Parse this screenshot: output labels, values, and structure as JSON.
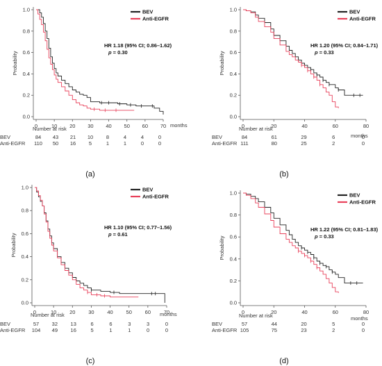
{
  "chart_data": [
    {
      "id": "a",
      "type": "line",
      "panel_label": "(a)",
      "ylabel": "Probability",
      "xunit": "months",
      "xlim": [
        0,
        70
      ],
      "ylim": [
        0,
        1
      ],
      "x_ticks": [
        "0",
        "10",
        "20",
        "30",
        "40",
        "50",
        "60",
        "70"
      ],
      "y_ticks": [
        "0.0",
        "0.2",
        "0.4",
        "0.6",
        "0.8",
        "1.0"
      ],
      "hr_text": "HR 1.18 (95% CI; 0.86–1.62)",
      "p_label": "p",
      "p_value": "= 0.30",
      "series": [
        {
          "name": "BEV",
          "color": "#222222",
          "x": [
            0,
            2,
            3,
            4,
            5,
            6,
            7,
            8,
            9,
            10,
            11,
            12,
            14,
            16,
            18,
            20,
            22,
            24,
            26,
            28,
            30,
            35,
            40,
            45,
            50,
            55,
            60,
            65,
            68,
            70
          ],
          "y": [
            1.0,
            0.97,
            0.93,
            0.87,
            0.8,
            0.73,
            0.64,
            0.56,
            0.5,
            0.45,
            0.41,
            0.38,
            0.34,
            0.31,
            0.28,
            0.25,
            0.23,
            0.21,
            0.2,
            0.18,
            0.14,
            0.13,
            0.13,
            0.12,
            0.11,
            0.1,
            0.1,
            0.08,
            0.05,
            0.02
          ],
          "censor_x": [
            36,
            40,
            46,
            52,
            58,
            64
          ]
        },
        {
          "name": "Anti-EGFR",
          "color": "#e8405a",
          "x": [
            0,
            1,
            2,
            3,
            4,
            5,
            6,
            7,
            8,
            9,
            10,
            11,
            12,
            14,
            16,
            18,
            20,
            22,
            24,
            26,
            28,
            30,
            35,
            40,
            45,
            50,
            52,
            54
          ],
          "y": [
            1.0,
            0.96,
            0.91,
            0.86,
            0.79,
            0.71,
            0.63,
            0.55,
            0.49,
            0.44,
            0.39,
            0.35,
            0.32,
            0.28,
            0.24,
            0.2,
            0.16,
            0.13,
            0.11,
            0.1,
            0.08,
            0.07,
            0.06,
            0.06,
            0.06,
            0.06,
            0.06,
            0.06
          ],
          "censor_x": [
            32,
            38,
            44
          ]
        }
      ],
      "risk_title": "Number at risk",
      "risk_rows": [
        {
          "label": "BEV",
          "values": [
            "84",
            "43",
            "21",
            "10",
            "8",
            "4",
            "4",
            "0"
          ]
        },
        {
          "label": "Anti-EGFR",
          "values": [
            "110",
            "50",
            "16",
            "5",
            "1",
            "1",
            "0",
            "0"
          ]
        }
      ]
    },
    {
      "id": "b",
      "type": "line",
      "panel_label": "(b)",
      "ylabel": "Probability",
      "xunit": "months",
      "xlim": [
        0,
        80
      ],
      "ylim": [
        0,
        1
      ],
      "x_ticks": [
        "0",
        "20",
        "40",
        "60",
        "80"
      ],
      "y_ticks": [
        "0.0",
        "0.2",
        "0.4",
        "0.6",
        "0.8",
        "1.0"
      ],
      "hr_text": "HR 1.20 (95% CI; 0.84–1.71)",
      "p_label": "p",
      "p_value": "= 0.33",
      "series": [
        {
          "name": "BEV",
          "color": "#222222",
          "x": [
            0,
            2,
            5,
            8,
            10,
            14,
            18,
            20,
            24,
            28,
            30,
            32,
            34,
            36,
            38,
            40,
            42,
            44,
            46,
            48,
            50,
            52,
            54,
            56,
            60,
            62,
            66,
            70,
            75,
            78
          ],
          "y": [
            1.0,
            0.99,
            0.98,
            0.95,
            0.92,
            0.88,
            0.82,
            0.76,
            0.71,
            0.66,
            0.62,
            0.59,
            0.56,
            0.53,
            0.5,
            0.48,
            0.46,
            0.44,
            0.41,
            0.39,
            0.37,
            0.34,
            0.32,
            0.3,
            0.27,
            0.25,
            0.2,
            0.2,
            0.2,
            0.2
          ],
          "censor_x": [
            36,
            40,
            44,
            48,
            52,
            56,
            62,
            72,
            76
          ]
        },
        {
          "name": "Anti-EGFR",
          "color": "#e8405a",
          "x": [
            0,
            2,
            5,
            8,
            10,
            14,
            18,
            20,
            24,
            28,
            30,
            32,
            34,
            36,
            38,
            40,
            42,
            44,
            46,
            48,
            50,
            52,
            54,
            56,
            58,
            60,
            62
          ],
          "y": [
            1.0,
            0.99,
            0.97,
            0.93,
            0.89,
            0.84,
            0.79,
            0.73,
            0.67,
            0.61,
            0.58,
            0.56,
            0.53,
            0.51,
            0.48,
            0.46,
            0.43,
            0.4,
            0.37,
            0.34,
            0.3,
            0.27,
            0.23,
            0.2,
            0.14,
            0.09,
            0.08
          ],
          "censor_x": [
            38,
            42,
            46,
            50
          ]
        }
      ],
      "risk_title": "Number at risk",
      "risk_rows": [
        {
          "label": "BEV",
          "values": [
            "84",
            "61",
            "29",
            "6",
            "0"
          ]
        },
        {
          "label": "Anti-EGFR",
          "values": [
            "111",
            "80",
            "25",
            "2",
            "0"
          ]
        }
      ]
    },
    {
      "id": "c",
      "type": "line",
      "panel_label": "(c)",
      "ylabel": "Probability",
      "xunit": "months",
      "xlim": [
        0,
        70
      ],
      "ylim": [
        0,
        1
      ],
      "x_ticks": [
        "0",
        "10",
        "20",
        "30",
        "40",
        "50",
        "60",
        "70"
      ],
      "y_ticks": [
        "0.0",
        "0.2",
        "0.4",
        "0.6",
        "0.8",
        "1.0"
      ],
      "hr_text": "HR 1.10 (95% CI; 0.77–1.56)",
      "p_label": "p",
      "p_value": "= 0.61",
      "series": [
        {
          "name": "BEV",
          "color": "#222222",
          "x": [
            0,
            1,
            2,
            3,
            4,
            5,
            6,
            7,
            8,
            9,
            10,
            12,
            14,
            16,
            18,
            20,
            22,
            24,
            26,
            28,
            30,
            35,
            40,
            45,
            50,
            55,
            60,
            65,
            68,
            69
          ],
          "y": [
            1.0,
            0.96,
            0.92,
            0.88,
            0.84,
            0.78,
            0.71,
            0.64,
            0.58,
            0.52,
            0.47,
            0.4,
            0.35,
            0.3,
            0.26,
            0.22,
            0.19,
            0.17,
            0.15,
            0.13,
            0.11,
            0.1,
            0.09,
            0.08,
            0.08,
            0.08,
            0.08,
            0.08,
            0.08,
            0.0
          ],
          "censor_x": [
            30,
            42,
            62,
            64
          ]
        },
        {
          "name": "Anti-EGFR",
          "color": "#e8405a",
          "x": [
            0,
            1,
            2,
            3,
            4,
            5,
            6,
            7,
            8,
            9,
            10,
            12,
            14,
            16,
            18,
            20,
            22,
            24,
            26,
            28,
            30,
            35,
            40,
            45,
            50,
            55
          ],
          "y": [
            1.0,
            0.97,
            0.93,
            0.89,
            0.84,
            0.77,
            0.7,
            0.62,
            0.56,
            0.5,
            0.45,
            0.39,
            0.33,
            0.28,
            0.24,
            0.2,
            0.16,
            0.13,
            0.11,
            0.09,
            0.07,
            0.06,
            0.05,
            0.05,
            0.05,
            0.05
          ],
          "censor_x": [
            28,
            33,
            37
          ]
        }
      ],
      "risk_title": "Number at risk",
      "risk_rows": [
        {
          "label": "BEV",
          "values": [
            "57",
            "32",
            "13",
            "6",
            "6",
            "3",
            "3",
            "0"
          ]
        },
        {
          "label": "Anti-EGFR",
          "values": [
            "104",
            "49",
            "16",
            "5",
            "1",
            "1",
            "0",
            "0"
          ]
        }
      ]
    },
    {
      "id": "d",
      "type": "line",
      "panel_label": "(d)",
      "ylabel": "Probability",
      "xunit": "months",
      "xlim": [
        0,
        80
      ],
      "ylim": [
        0,
        1
      ],
      "x_ticks": [
        "0",
        "20",
        "40",
        "60",
        "80"
      ],
      "y_ticks": [
        "0.0",
        "0.2",
        "0.4",
        "0.6",
        "0.8",
        "1.0"
      ],
      "hr_text": "HR 1.22 (95% CI; 0.81–1.83)",
      "p_label": "p",
      "p_value": "= 0.33",
      "series": [
        {
          "name": "BEV",
          "color": "#222222",
          "x": [
            0,
            2,
            5,
            8,
            10,
            14,
            18,
            20,
            24,
            28,
            30,
            32,
            34,
            36,
            38,
            40,
            42,
            44,
            46,
            48,
            50,
            52,
            54,
            56,
            58,
            60,
            62,
            66,
            72,
            78
          ],
          "y": [
            1.0,
            0.99,
            0.97,
            0.95,
            0.92,
            0.87,
            0.82,
            0.77,
            0.71,
            0.66,
            0.62,
            0.58,
            0.55,
            0.52,
            0.5,
            0.48,
            0.46,
            0.44,
            0.41,
            0.38,
            0.36,
            0.34,
            0.33,
            0.3,
            0.28,
            0.26,
            0.23,
            0.18,
            0.18,
            0.18
          ],
          "censor_x": [
            38,
            42,
            46,
            50,
            54,
            58,
            70,
            74
          ]
        },
        {
          "name": "Anti-EGFR",
          "color": "#e8405a",
          "x": [
            0,
            2,
            5,
            8,
            10,
            14,
            18,
            20,
            24,
            28,
            30,
            32,
            34,
            36,
            38,
            40,
            42,
            44,
            46,
            48,
            50,
            52,
            54,
            56,
            58,
            60,
            62
          ],
          "y": [
            1.0,
            0.98,
            0.95,
            0.91,
            0.87,
            0.81,
            0.75,
            0.69,
            0.63,
            0.58,
            0.55,
            0.52,
            0.5,
            0.47,
            0.45,
            0.43,
            0.41,
            0.38,
            0.35,
            0.32,
            0.29,
            0.26,
            0.22,
            0.18,
            0.14,
            0.1,
            0.09
          ],
          "censor_x": [
            36,
            40,
            44,
            48
          ]
        }
      ],
      "risk_title": "Number at risk",
      "risk_rows": [
        {
          "label": "BEV",
          "values": [
            "57",
            "44",
            "20",
            "5",
            "0"
          ]
        },
        {
          "label": "Anti-EGFR",
          "values": [
            "105",
            "75",
            "23",
            "2",
            "0"
          ]
        }
      ]
    }
  ]
}
